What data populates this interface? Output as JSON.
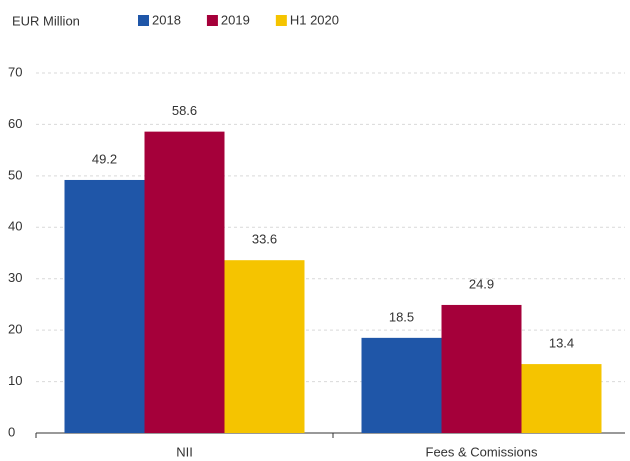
{
  "chart_data": {
    "type": "bar",
    "y_label": "EUR Million",
    "categories": [
      "NII",
      "Fees & Comissions"
    ],
    "series": [
      {
        "name": "2018",
        "color": "#1f56a8",
        "values": [
          49.2,
          18.5
        ]
      },
      {
        "name": "2019",
        "color": "#a5003a",
        "values": [
          58.6,
          24.9
        ]
      },
      {
        "name": "H1 2020",
        "color": "#f5c400",
        "values": [
          33.6,
          13.4
        ]
      }
    ],
    "ylim": [
      0,
      70
    ],
    "yticks": [
      0,
      10,
      20,
      30,
      40,
      50,
      60,
      70
    ],
    "grid": true,
    "legend": "top"
  }
}
